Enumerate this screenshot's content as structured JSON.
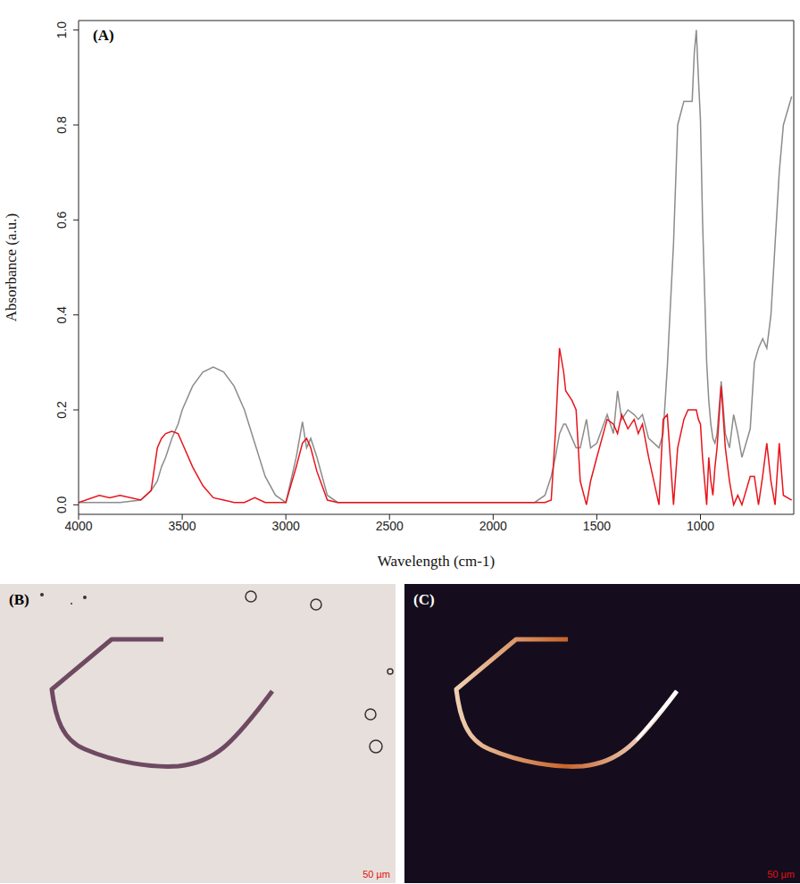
{
  "chart_data": {
    "type": "line",
    "annotations": [
      "(A)"
    ],
    "x_label": "Wavelength (cm-1)",
    "y_label": "Absorbance (a.u.)",
    "x": [
      4000,
      3900,
      3850,
      3800,
      3700,
      3650,
      3620,
      3600,
      3580,
      3550,
      3520,
      3500,
      3450,
      3400,
      3350,
      3300,
      3250,
      3200,
      3150,
      3100,
      3050,
      3000,
      2950,
      2920,
      2900,
      2880,
      2850,
      2800,
      2750,
      2500,
      2000,
      1800,
      1750,
      1720,
      1700,
      1680,
      1660,
      1650,
      1620,
      1600,
      1580,
      1550,
      1530,
      1500,
      1450,
      1420,
      1400,
      1380,
      1350,
      1320,
      1300,
      1280,
      1250,
      1200,
      1180,
      1160,
      1130,
      1110,
      1080,
      1060,
      1040,
      1030,
      1020,
      1010,
      1000,
      990,
      970,
      960,
      950,
      940,
      930,
      920,
      900,
      880,
      860,
      840,
      820,
      800,
      760,
      740,
      720,
      700,
      680,
      660,
      640,
      620,
      600,
      560
    ],
    "series": [
      {
        "color": "#8c8c8c",
        "values": [
          0.005,
          0.005,
          0.005,
          0.005,
          0.01,
          0.03,
          0.05,
          0.08,
          0.1,
          0.14,
          0.17,
          0.2,
          0.25,
          0.28,
          0.29,
          0.28,
          0.25,
          0.2,
          0.13,
          0.06,
          0.02,
          0.005,
          0.1,
          0.175,
          0.12,
          0.14,
          0.1,
          0.02,
          0.005,
          0.005,
          0.005,
          0.005,
          0.02,
          0.06,
          0.1,
          0.15,
          0.17,
          0.17,
          0.14,
          0.12,
          0.12,
          0.18,
          0.12,
          0.13,
          0.19,
          0.15,
          0.24,
          0.18,
          0.2,
          0.19,
          0.18,
          0.19,
          0.14,
          0.12,
          0.15,
          0.29,
          0.55,
          0.8,
          0.85,
          0.85,
          0.85,
          0.95,
          1.0,
          0.9,
          0.81,
          0.6,
          0.3,
          0.22,
          0.17,
          0.14,
          0.13,
          0.15,
          0.26,
          0.15,
          0.12,
          0.19,
          0.15,
          0.1,
          0.16,
          0.3,
          0.33,
          0.35,
          0.33,
          0.4,
          0.55,
          0.7,
          0.8,
          0.86
        ]
      },
      {
        "color": "#e8141c",
        "values": [
          0.005,
          0.02,
          0.015,
          0.02,
          0.01,
          0.03,
          0.12,
          0.14,
          0.15,
          0.155,
          0.15,
          0.13,
          0.08,
          0.04,
          0.015,
          0.01,
          0.005,
          0.005,
          0.015,
          0.005,
          0.005,
          0.005,
          0.08,
          0.13,
          0.14,
          0.12,
          0.07,
          0.01,
          0.005,
          0.005,
          0.005,
          0.005,
          0.005,
          0.01,
          0.15,
          0.33,
          0.28,
          0.24,
          0.22,
          0.2,
          0.05,
          0.0,
          0.05,
          0.1,
          0.18,
          0.17,
          0.15,
          0.19,
          0.16,
          0.18,
          0.15,
          0.17,
          0.1,
          0.0,
          0.18,
          0.19,
          0.0,
          0.12,
          0.18,
          0.2,
          0.2,
          0.2,
          0.2,
          0.18,
          0.17,
          0.1,
          0.0,
          0.1,
          0.05,
          0.02,
          0.08,
          0.12,
          0.25,
          0.12,
          0.05,
          0.0,
          0.02,
          0.0,
          0.06,
          0.06,
          0.0,
          0.06,
          0.13,
          0.05,
          0.0,
          0.13,
          0.02,
          0.01
        ]
      }
    ],
    "xlim": [
      4000,
      550
    ],
    "xticks": [
      4000,
      3500,
      3000,
      2500,
      2000,
      1500,
      1000
    ],
    "ylim": [
      -0.02,
      1.02
    ],
    "yticks": [
      {
        "value": 0,
        "label": "0.0"
      },
      0.2,
      0.4,
      0.6,
      0.8,
      {
        "value": 1,
        "label": "1.0"
      }
    ],
    "grid": false
  },
  "panels": [
    {
      "label": "(B)",
      "scale_bar": "50 µm"
    },
    {
      "label": "(C)",
      "scale_bar": "50 µm"
    }
  ]
}
